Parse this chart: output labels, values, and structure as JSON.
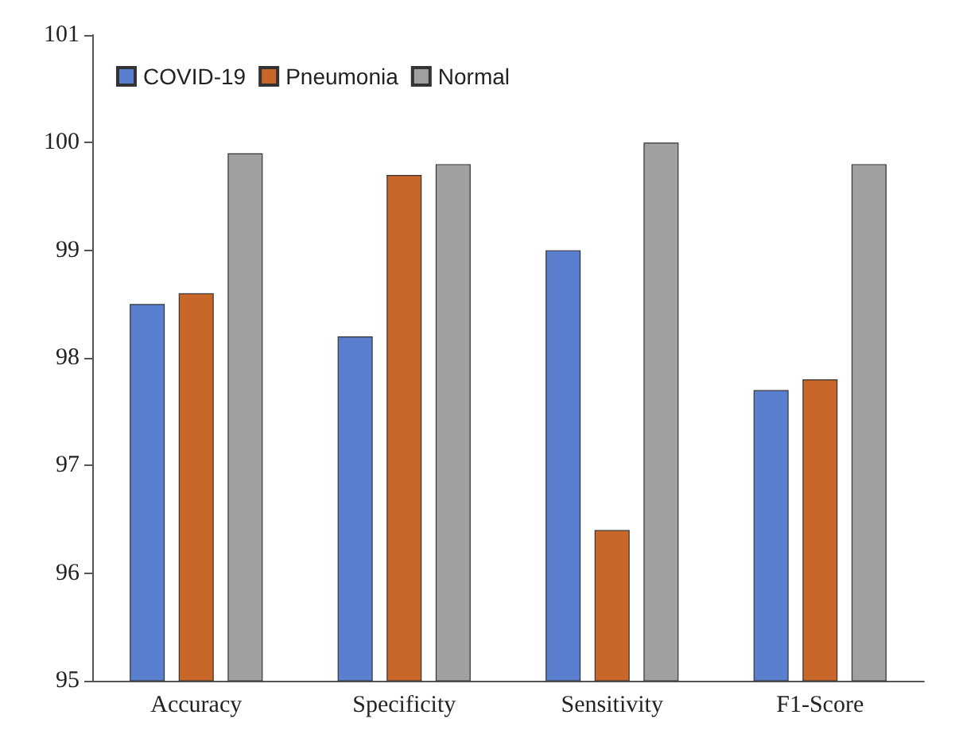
{
  "chart_data": {
    "type": "bar",
    "categories": [
      "Accuracy",
      "Specificity",
      "Sensitivity",
      "F1-Score"
    ],
    "series": [
      {
        "name": "COVID-19",
        "color": "#5b7fcf",
        "values": [
          98.5,
          98.2,
          99.0,
          97.7
        ]
      },
      {
        "name": "Pneumonia",
        "color": "#c9672a",
        "values": [
          98.6,
          99.7,
          96.4,
          97.8
        ]
      },
      {
        "name": "Normal",
        "color": "#a0a0a0",
        "values": [
          99.9,
          99.8,
          100.0,
          99.8
        ]
      }
    ],
    "ylim": [
      95,
      101
    ],
    "yticks": [
      95,
      96,
      97,
      98,
      99,
      100,
      101
    ],
    "grid": false,
    "legend": "top left"
  }
}
